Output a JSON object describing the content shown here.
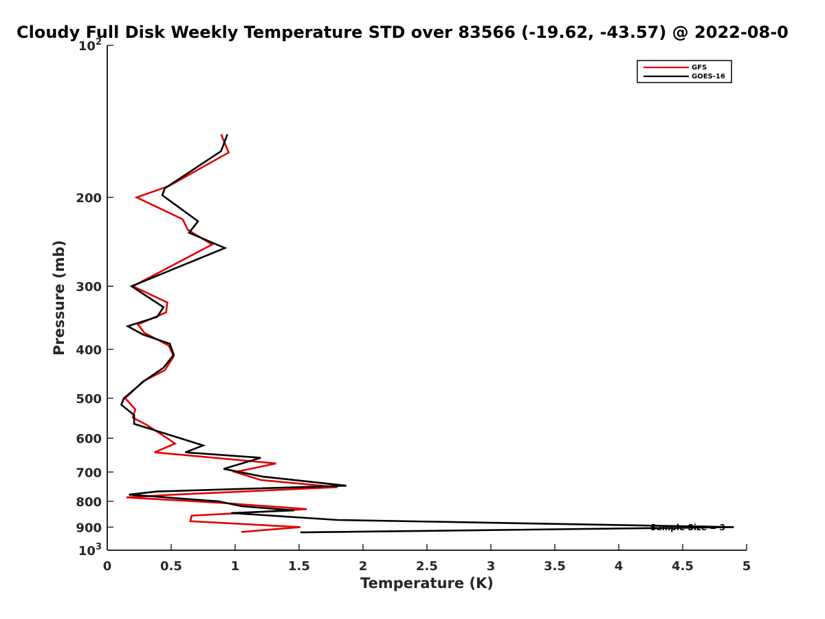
{
  "chart_data": {
    "type": "line",
    "title": "Cloudy Full Disk Weekly Temperature STD over 83566 (-19.62, -43.57) @ 2022-08-0",
    "xlabel": "Temperature (K)",
    "ylabel": "Pressure (mb)",
    "xlim": [
      0,
      5
    ],
    "ylim": [
      100,
      1000
    ],
    "y_scale": "log",
    "y_reversed": true,
    "x_ticks": [
      "0",
      "0.5",
      "1",
      "1.5",
      "2",
      "2.5",
      "3",
      "3.5",
      "4",
      "4.5",
      "5"
    ],
    "y_ticks": [
      {
        "value": 100,
        "base": "10",
        "exp": "2"
      },
      {
        "value": 200,
        "label": "200"
      },
      {
        "value": 300,
        "label": "300"
      },
      {
        "value": 400,
        "label": "400"
      },
      {
        "value": 500,
        "label": "500"
      },
      {
        "value": 600,
        "label": "600"
      },
      {
        "value": 700,
        "label": "700"
      },
      {
        "value": 800,
        "label": "800"
      },
      {
        "value": 900,
        "label": "900"
      },
      {
        "value": 1000,
        "base": "10",
        "exp": "3"
      }
    ],
    "legend_position": "top-right",
    "annotation": "Sample Size = 3",
    "grid": false,
    "series": [
      {
        "name": "GFS",
        "color": "#e00000",
        "x": [
          0.89,
          0.95,
          0.48,
          0.23,
          0.59,
          0.63,
          0.82,
          0.2,
          0.47,
          0.46,
          0.24,
          0.29,
          0.48,
          0.52,
          0.45,
          0.28,
          0.14,
          0.22,
          0.2,
          0.31,
          0.47,
          0.53,
          0.37,
          1.32,
          1.0,
          1.2,
          1.8,
          0.52,
          0.15,
          0.9,
          1.56,
          0.97,
          0.66,
          0.65,
          1.51,
          1.05
        ],
        "y": [
          150,
          163,
          190,
          200,
          221,
          232,
          248,
          300,
          323,
          338,
          357,
          371,
          393,
          413,
          440,
          463,
          500,
          526,
          546,
          565,
          600,
          615,
          640,
          673,
          700,
          726,
          750,
          776,
          786,
          806,
          829,
          846,
          854,
          876,
          900,
          920
        ]
      },
      {
        "name": "GOES-16",
        "color": "#000000",
        "x": [
          0.94,
          0.89,
          0.45,
          0.43,
          0.71,
          0.64,
          0.92,
          0.19,
          0.44,
          0.39,
          0.16,
          0.28,
          0.49,
          0.52,
          0.44,
          0.29,
          0.13,
          0.11,
          0.21,
          0.21,
          0.75,
          0.61,
          1.2,
          0.91,
          1.22,
          1.87,
          0.39,
          0.17,
          0.87,
          1.05,
          1.46,
          0.97,
          1.8,
          4.9,
          1.51
        ],
        "y": [
          150,
          162,
          192,
          198,
          223,
          235,
          252,
          300,
          330,
          345,
          360,
          374,
          390,
          410,
          435,
          462,
          500,
          515,
          540,
          562,
          620,
          640,
          656,
          690,
          715,
          745,
          765,
          776,
          800,
          818,
          834,
          844,
          871,
          900,
          922
        ]
      }
    ]
  }
}
